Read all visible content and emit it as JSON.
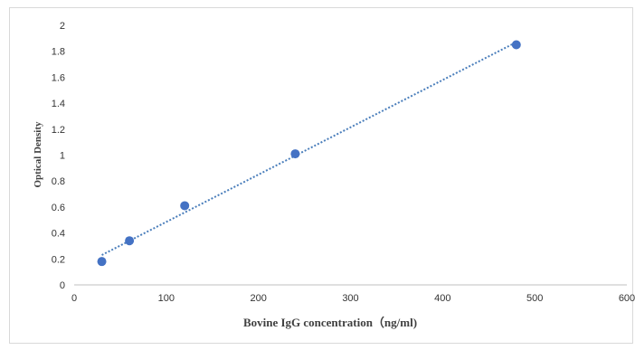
{
  "chart_data": {
    "type": "scatter",
    "xlabel": "Bovine IgG concentration（ng/ml)",
    "ylabel": "Optical Density",
    "xlim": [
      0,
      600
    ],
    "ylim": [
      0,
      2
    ],
    "xticks": [
      0,
      100,
      200,
      300,
      400,
      500,
      600
    ],
    "yticks": [
      0,
      0.2,
      0.4,
      0.6,
      0.8,
      1,
      1.2,
      1.4,
      1.6,
      1.8,
      2
    ],
    "xtick_labels": [
      "0",
      "100",
      "200",
      "300",
      "400",
      "500",
      "600"
    ],
    "ytick_labels": [
      "0",
      "0.2",
      "0.4",
      "0.6",
      "0.8",
      "1",
      "1.2",
      "1.4",
      "1.6",
      "1.8",
      "2"
    ],
    "grid": false,
    "legend": "none",
    "series": [
      {
        "x": [
          30,
          60,
          120,
          240,
          480
        ],
        "y": [
          0.18,
          0.34,
          0.61,
          1.01,
          1.85
        ],
        "marker_color": "#4472c4"
      }
    ],
    "trendline": {
      "kind": "linear",
      "style": "dotted",
      "color": "#4a7ebb",
      "x": [
        30,
        480
      ],
      "y": [
        0.23,
        1.87
      ]
    }
  }
}
